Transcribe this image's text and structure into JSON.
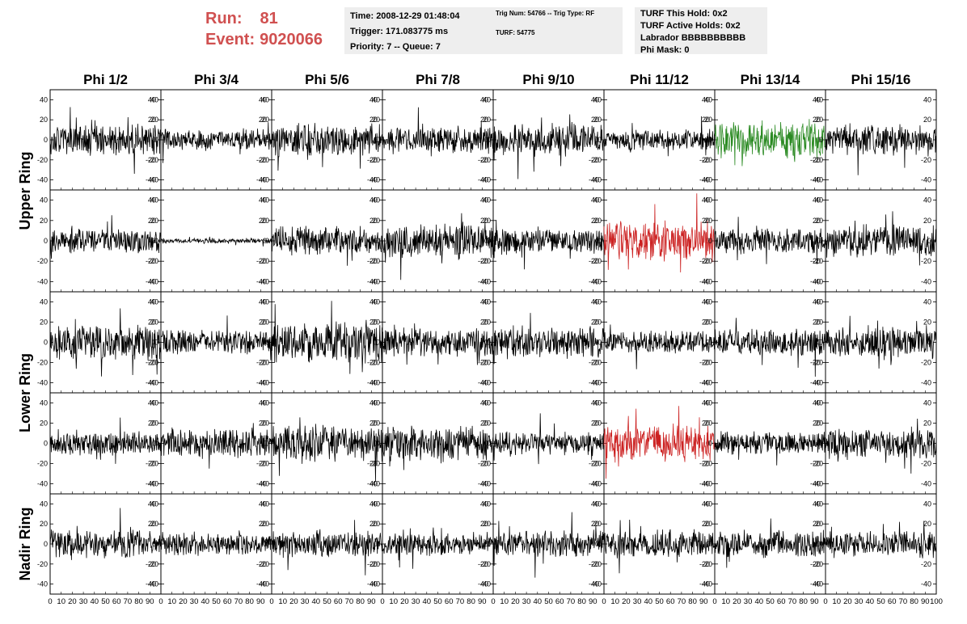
{
  "header": {
    "run_label": "Run:",
    "run_value": "81",
    "event_label": "Event:",
    "event_value": "9020066",
    "time": "Time: 2008-12-29 01:48:04",
    "trigger": "Trigger: 171.083775 ms",
    "priority": "Priority: 7 -- Queue: 7",
    "trig_num": "Trig Num: 54766 -- Trig Type: RF",
    "turf": "TURF: 54775",
    "turf_hold": "TURF This Hold: 0x2",
    "turf_active": "TURF Active Holds: 0x2",
    "labrador": "Labrador BBBBBBBBBB",
    "phi_mask": "Phi Mask: 0"
  },
  "chart_data": {
    "type": "line",
    "columns": [
      "Phi 1/2",
      "Phi 3/4",
      "Phi 5/6",
      "Phi 7/8",
      "Phi 9/10",
      "Phi 11/12",
      "Phi 13/14",
      "Phi 15/16"
    ],
    "ring_labels": [
      {
        "label": "Upper Ring",
        "rows": [
          0,
          1
        ]
      },
      {
        "label": "Lower Ring",
        "rows": [
          2,
          3
        ]
      },
      {
        "label": "Nadir Ring",
        "rows": [
          4
        ]
      }
    ],
    "rows": 5,
    "xlim": [
      0,
      100
    ],
    "ylim": [
      -50,
      50
    ],
    "y_ticks": [
      -40,
      -20,
      0,
      20,
      40
    ],
    "y_tick_labels": [
      "-40",
      "-20",
      "0",
      "20",
      "40"
    ],
    "x_tick_labels": [
      "0",
      "10",
      "20",
      "30",
      "40",
      "50",
      "60",
      "70",
      "80",
      "90",
      "100"
    ],
    "samples": 260,
    "colors": {
      "normal": "#000000",
      "green": "#2a8a22",
      "red": "#cc2222"
    },
    "panels": [
      [
        {
          "amp": 12,
          "seed": 11,
          "color": "normal"
        },
        {
          "amp": 8,
          "seed": 12,
          "color": "normal"
        },
        {
          "amp": 13,
          "seed": 13,
          "color": "normal"
        },
        {
          "amp": 11,
          "seed": 14,
          "color": "normal"
        },
        {
          "amp": 13,
          "seed": 15,
          "color": "normal"
        },
        {
          "amp": 8,
          "seed": 16,
          "color": "normal"
        },
        {
          "amp": 15,
          "seed": 17,
          "color": "green"
        },
        {
          "amp": 12,
          "seed": 18,
          "color": "normal"
        }
      ],
      [
        {
          "amp": 10,
          "seed": 21,
          "color": "normal"
        },
        {
          "amp": 2,
          "seed": 22,
          "color": "normal"
        },
        {
          "amp": 11,
          "seed": 23,
          "color": "normal"
        },
        {
          "amp": 14,
          "seed": 24,
          "color": "normal"
        },
        {
          "amp": 10,
          "seed": 25,
          "color": "normal"
        },
        {
          "amp": 16,
          "seed": 26,
          "color": "red"
        },
        {
          "amp": 10,
          "seed": 27,
          "color": "normal"
        },
        {
          "amp": 12,
          "seed": 28,
          "color": "normal"
        }
      ],
      [
        {
          "amp": 14,
          "seed": 31,
          "color": "normal"
        },
        {
          "amp": 10,
          "seed": 32,
          "color": "normal"
        },
        {
          "amp": 16,
          "seed": 33,
          "color": "normal"
        },
        {
          "amp": 11,
          "seed": 34,
          "color": "normal"
        },
        {
          "amp": 12,
          "seed": 35,
          "color": "normal"
        },
        {
          "amp": 9,
          "seed": 36,
          "color": "normal"
        },
        {
          "amp": 11,
          "seed": 37,
          "color": "normal"
        },
        {
          "amp": 12,
          "seed": 38,
          "color": "normal"
        }
      ],
      [
        {
          "amp": 9,
          "seed": 41,
          "color": "normal"
        },
        {
          "amp": 12,
          "seed": 42,
          "color": "normal"
        },
        {
          "amp": 14,
          "seed": 43,
          "color": "normal"
        },
        {
          "amp": 13,
          "seed": 44,
          "color": "normal"
        },
        {
          "amp": 9,
          "seed": 45,
          "color": "normal"
        },
        {
          "amp": 14,
          "seed": 46,
          "color": "red"
        },
        {
          "amp": 9,
          "seed": 47,
          "color": "normal"
        },
        {
          "amp": 12,
          "seed": 48,
          "color": "normal"
        }
      ],
      [
        {
          "amp": 11,
          "seed": 51,
          "color": "normal"
        },
        {
          "amp": 9,
          "seed": 52,
          "color": "normal"
        },
        {
          "amp": 11,
          "seed": 53,
          "color": "normal"
        },
        {
          "amp": 9,
          "seed": 54,
          "color": "normal"
        },
        {
          "amp": 11,
          "seed": 55,
          "color": "normal"
        },
        {
          "amp": 11,
          "seed": 56,
          "color": "normal"
        },
        {
          "amp": 11,
          "seed": 57,
          "color": "normal"
        },
        {
          "amp": 10,
          "seed": 58,
          "color": "normal"
        }
      ]
    ]
  }
}
